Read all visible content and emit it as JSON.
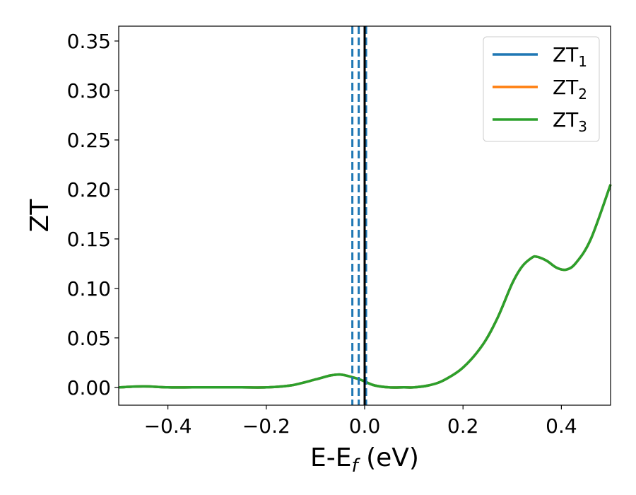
{
  "chart_data": {
    "type": "line",
    "title": "",
    "xlabel": "E-E",
    "xlabel_sub": "f",
    "xlabel_unit": " (eV)",
    "ylabel": "ZT",
    "xlim": [
      -0.5,
      0.5
    ],
    "ylim": [
      -0.018,
      0.365
    ],
    "xticks": [
      -0.4,
      -0.2,
      0.0,
      0.2,
      0.4
    ],
    "xtick_labels": [
      "−0.4",
      "−0.2",
      "0.0",
      "0.2",
      "0.4"
    ],
    "yticks": [
      0.0,
      0.05,
      0.1,
      0.15,
      0.2,
      0.25,
      0.3,
      0.35
    ],
    "ytick_labels": [
      "0.00",
      "0.05",
      "0.10",
      "0.15",
      "0.20",
      "0.25",
      "0.30",
      "0.35"
    ],
    "grid": false,
    "legend_position": "top-right",
    "vlines": [
      {
        "x": -0.025,
        "color": "#1f77b4",
        "style": "dashed"
      },
      {
        "x": -0.012,
        "color": "#1f77b4",
        "style": "dashed"
      },
      {
        "x": 0.003,
        "color": "#1f77b4",
        "style": "dashed"
      },
      {
        "x": 0.0,
        "color": "#000000",
        "style": "solid"
      }
    ],
    "x": [
      -0.5,
      -0.45,
      -0.4,
      -0.35,
      -0.3,
      -0.25,
      -0.2,
      -0.15,
      -0.1,
      -0.07,
      -0.05,
      -0.03,
      -0.01,
      0.0,
      0.02,
      0.05,
      0.08,
      0.1,
      0.13,
      0.16,
      0.2,
      0.24,
      0.27,
      0.3,
      0.32,
      0.34,
      0.35,
      0.37,
      0.39,
      0.41,
      0.43,
      0.46,
      0.5
    ],
    "series": [
      {
        "name": "ZT",
        "sub": "1",
        "color": "#1f77b4",
        "values": [
          0.0,
          0.001,
          0.0,
          0.0,
          0.0,
          0.0,
          0.0,
          0.002,
          0.008,
          0.012,
          0.013,
          0.011,
          0.008,
          0.006,
          0.002,
          0.0,
          0.0,
          0.0,
          0.002,
          0.007,
          0.02,
          0.043,
          0.07,
          0.105,
          0.122,
          0.131,
          0.132,
          0.128,
          0.121,
          0.119,
          0.126,
          0.15,
          0.205
        ]
      },
      {
        "name": "ZT",
        "sub": "2",
        "color": "#ff7f0e",
        "values": [
          0.0,
          0.001,
          0.0,
          0.0,
          0.0,
          0.0,
          0.0,
          0.002,
          0.008,
          0.012,
          0.013,
          0.011,
          0.008,
          0.006,
          0.002,
          0.0,
          0.0,
          0.0,
          0.002,
          0.007,
          0.02,
          0.043,
          0.07,
          0.105,
          0.122,
          0.131,
          0.132,
          0.128,
          0.121,
          0.119,
          0.126,
          0.15,
          0.205
        ]
      },
      {
        "name": "ZT",
        "sub": "3",
        "color": "#2ca02c",
        "values": [
          0.0,
          0.001,
          0.0,
          0.0,
          0.0,
          0.0,
          0.0,
          0.002,
          0.008,
          0.012,
          0.013,
          0.011,
          0.008,
          0.006,
          0.002,
          0.0,
          0.0,
          0.0,
          0.002,
          0.007,
          0.02,
          0.043,
          0.07,
          0.105,
          0.122,
          0.131,
          0.132,
          0.128,
          0.121,
          0.119,
          0.126,
          0.15,
          0.205
        ]
      }
    ]
  }
}
